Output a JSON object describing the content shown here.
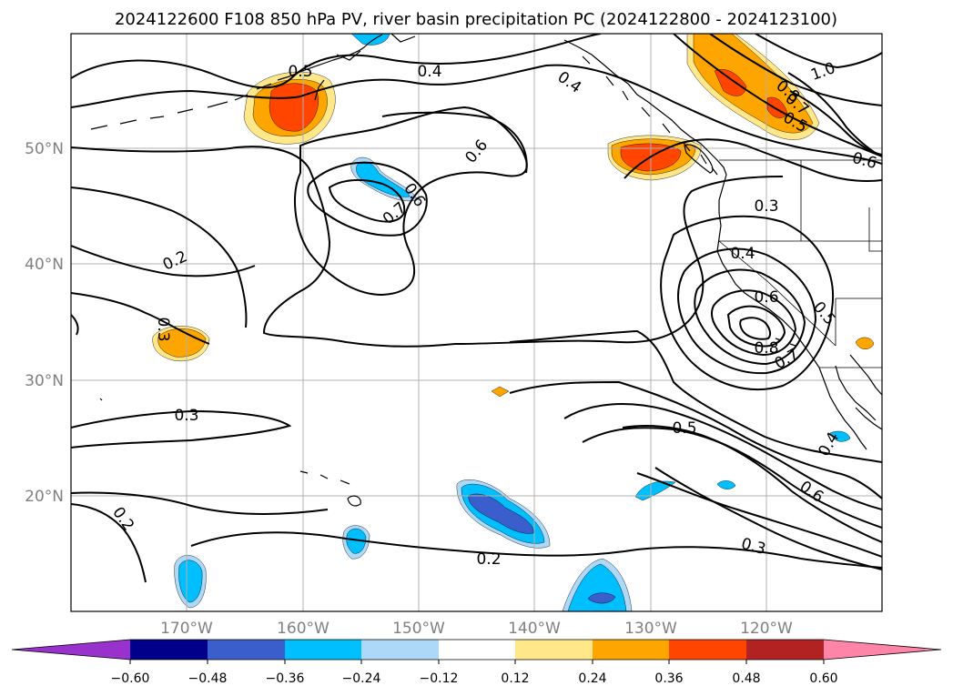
{
  "title": "2024122600 F108 850 hPa PV, river basin precipitation PC (2024122800 - 2024123100)",
  "map": {
    "lat_labels": [
      "50°N",
      "40°N",
      "30°N",
      "20°N"
    ],
    "lon_labels": [
      "170°W",
      "160°W",
      "150°W",
      "140°W",
      "130°W",
      "120°W"
    ],
    "grid": true
  },
  "contour_labels": [
    {
      "id": "c1",
      "text": "0.4"
    },
    {
      "id": "c2",
      "text": "0.4"
    },
    {
      "id": "c3",
      "text": "0.5"
    },
    {
      "id": "c4",
      "text": "1.0"
    },
    {
      "id": "c5",
      "text": "0.8"
    },
    {
      "id": "c6",
      "text": "0.7"
    },
    {
      "id": "c7",
      "text": "0.5"
    },
    {
      "id": "c8",
      "text": "0.6"
    },
    {
      "id": "c9",
      "text": "0.6"
    },
    {
      "id": "c10",
      "text": "0.6"
    },
    {
      "id": "c11",
      "text": "0.7"
    },
    {
      "id": "c12",
      "text": "0.3"
    },
    {
      "id": "c13",
      "text": "0.2"
    },
    {
      "id": "c14",
      "text": "0.4"
    },
    {
      "id": "c15",
      "text": "0.6"
    },
    {
      "id": "c16",
      "text": "0.5"
    },
    {
      "id": "c17",
      "text": "0.8"
    },
    {
      "id": "c18",
      "text": "0.7"
    },
    {
      "id": "c19",
      "text": "0.3"
    },
    {
      "id": "c20",
      "text": "0.3"
    },
    {
      "id": "c21",
      "text": "0.5"
    },
    {
      "id": "c22",
      "text": "0.4"
    },
    {
      "id": "c23",
      "text": "0.6"
    },
    {
      "id": "c24",
      "text": "0.2"
    },
    {
      "id": "c25",
      "text": "0.3"
    },
    {
      "id": "c26",
      "text": "0.2"
    }
  ],
  "colorbar": {
    "ticks": [
      "−0.60",
      "−0.48",
      "−0.36",
      "−0.24",
      "−0.12",
      "0.12",
      "0.24",
      "0.36",
      "0.48",
      "0.60"
    ],
    "colors": [
      "#9932cc",
      "#00008b",
      "#3a5fcd",
      "#00bfff",
      "#add8f7",
      "#ffffff",
      "#ffe78a",
      "#ffa500",
      "#ff4500",
      "#b22222",
      "#ff85a8"
    ],
    "extend": "both"
  },
  "shading_colors": {
    "pos_light": "#ffe78a",
    "pos_mid": "#ffa500",
    "pos_strong": "#ff4500",
    "neg_light": "#add8f7",
    "neg_mid": "#00bfff",
    "neg_strong": "#3a5fcd"
  }
}
